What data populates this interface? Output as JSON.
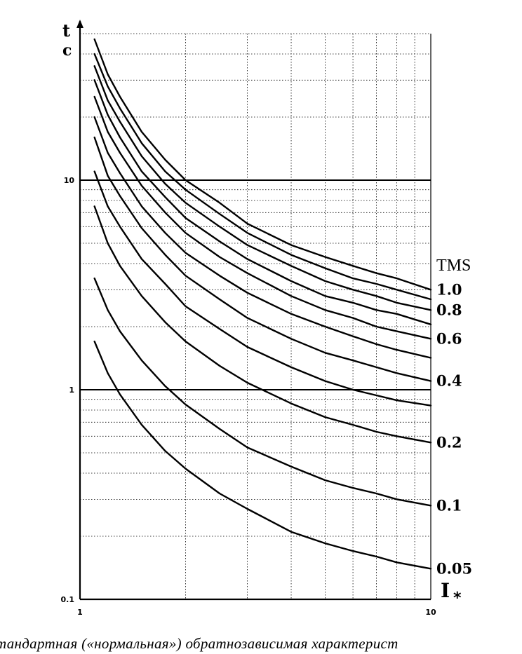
{
  "caption": "тандартная («нормальная») обратнозависимая характерист",
  "chart_data": {
    "type": "line",
    "xscale": "log",
    "yscale": "log",
    "xlim": [
      1,
      10
    ],
    "ylim": [
      0.1,
      50
    ],
    "grid": true,
    "xlabel": "I*",
    "ylabel_top": "t",
    "ylabel_unit": "c",
    "x_ticks": [
      1,
      10
    ],
    "x_tick_labels": [
      "1",
      "10"
    ],
    "y_ticks": [
      0.1,
      1,
      10
    ],
    "y_tick_labels": [
      "0.1",
      "1",
      "10"
    ],
    "legend_title": "TMS",
    "x": [
      1.1,
      1.2,
      1.3,
      1.5,
      1.75,
      2,
      2.5,
      3,
      4,
      5,
      6,
      7,
      8,
      10
    ],
    "series": [
      {
        "name": "1.0",
        "values": [
          47.0,
          32.0,
          25.0,
          17.0,
          12.5,
          10.0,
          7.8,
          6.2,
          4.9,
          4.3,
          3.9,
          3.6,
          3.4,
          3.0
        ]
      },
      {
        "name": "",
        "values": [
          40.0,
          28.0,
          22.0,
          15.0,
          11.0,
          9.0,
          6.9,
          5.6,
          4.4,
          3.8,
          3.4,
          3.2,
          3.0,
          2.7
        ]
      },
      {
        "name": "0.8",
        "values": [
          35.0,
          24.0,
          19.0,
          13.0,
          9.6,
          7.8,
          6.0,
          4.9,
          3.9,
          3.3,
          3.0,
          2.8,
          2.6,
          2.4
        ]
      },
      {
        "name": "",
        "values": [
          30.0,
          20.5,
          16.0,
          11.0,
          8.3,
          6.6,
          5.1,
          4.2,
          3.3,
          2.8,
          2.6,
          2.4,
          2.3,
          2.05
        ]
      },
      {
        "name": "0.6",
        "values": [
          25.0,
          17.0,
          13.5,
          9.4,
          7.0,
          5.6,
          4.3,
          3.6,
          2.8,
          2.4,
          2.2,
          2.0,
          1.9,
          1.75
        ]
      },
      {
        "name": "",
        "values": [
          20.0,
          13.5,
          10.8,
          7.5,
          5.6,
          4.5,
          3.5,
          2.9,
          2.3,
          2.0,
          1.8,
          1.65,
          1.55,
          1.42
        ]
      },
      {
        "name": "0.4",
        "values": [
          16.0,
          10.5,
          8.4,
          5.9,
          4.4,
          3.5,
          2.7,
          2.2,
          1.75,
          1.5,
          1.38,
          1.28,
          1.2,
          1.1
        ]
      },
      {
        "name": "",
        "values": [
          11.0,
          7.5,
          6.0,
          4.2,
          3.2,
          2.5,
          1.95,
          1.6,
          1.28,
          1.1,
          1.0,
          0.94,
          0.89,
          0.84
        ]
      },
      {
        "name": "0.2",
        "values": [
          7.5,
          5.0,
          3.9,
          2.8,
          2.1,
          1.7,
          1.3,
          1.08,
          0.86,
          0.74,
          0.68,
          0.63,
          0.6,
          0.56
        ]
      },
      {
        "name": "0.1",
        "values": [
          3.4,
          2.4,
          1.9,
          1.38,
          1.04,
          0.85,
          0.65,
          0.53,
          0.43,
          0.37,
          0.34,
          0.32,
          0.3,
          0.28
        ]
      },
      {
        "name": "0.05",
        "values": [
          1.7,
          1.2,
          0.95,
          0.68,
          0.51,
          0.42,
          0.32,
          0.27,
          0.21,
          0.185,
          0.17,
          0.16,
          0.15,
          0.14
        ]
      }
    ]
  }
}
